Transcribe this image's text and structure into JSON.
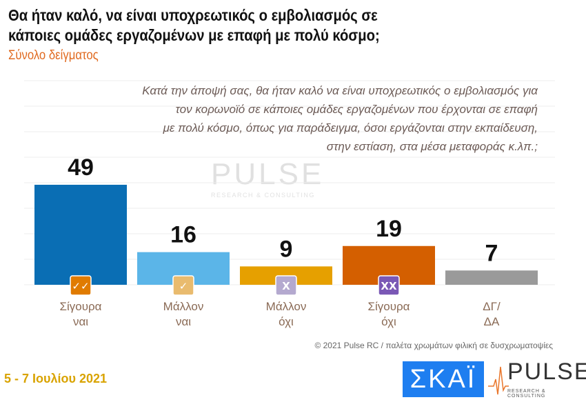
{
  "title_lines": [
    "Θα ήταν καλό, να είναι υποχρεωτικός ο εμβολιασμός σε",
    "κάποιες ομάδες εργαζομένων με επαφή με πολύ κόσμο;"
  ],
  "subtitle": "Σύνολο δείγματος",
  "question_lines": [
    "Κατά την άποψή σας, θα ήταν καλό να είναι υποχρεωτικός ο εμβολιασμός για",
    "τον κορωνοϊό σε κάποιες ομάδες εργαζομένων που έρχονται σε επαφή",
    "με πολύ κόσμο, όπως για παράδειγμα, όσοι εργάζονται στην εκπαίδευση,",
    "στην εστίαση, στα μέσα μεταφοράς κ.λπ.;"
  ],
  "chart_data": {
    "type": "bar",
    "categories": [
      [
        "Σίγουρα",
        "ναι"
      ],
      [
        "Μάλλον",
        "ναι"
      ],
      [
        "Μάλλον",
        "όχι"
      ],
      [
        "Σίγουρα",
        "όχι"
      ],
      [
        "ΔΓ/",
        "ΔΑ"
      ]
    ],
    "values": [
      49,
      16,
      9,
      19,
      7
    ],
    "colors": [
      "#0a6eb4",
      "#5bb5e8",
      "#e6a000",
      "#d45f00",
      "#9a9a9a"
    ],
    "icons": [
      {
        "name": "double-check-icon",
        "glyph": "✓✓",
        "color": "#e07b00"
      },
      {
        "name": "check-icon",
        "glyph": "✓",
        "color": "#e9bb6e"
      },
      {
        "name": "x-icon",
        "glyph": "X",
        "color": "#b4a9cf"
      },
      {
        "name": "double-x-icon",
        "glyph": "XX",
        "color": "#7a58b5"
      },
      null
    ],
    "grid": true
  },
  "footer": "© 2021 Pulse RC  /  παλέτα χρωμάτων φιλική σε δυσχρωματοψίες",
  "date": "5 - 7  Ιουλίου  2021",
  "logos": {
    "skai": "ΣΚΑΪ",
    "pulse": "PULSE",
    "pulse_sub": "RESEARCH & CONSULTING"
  }
}
